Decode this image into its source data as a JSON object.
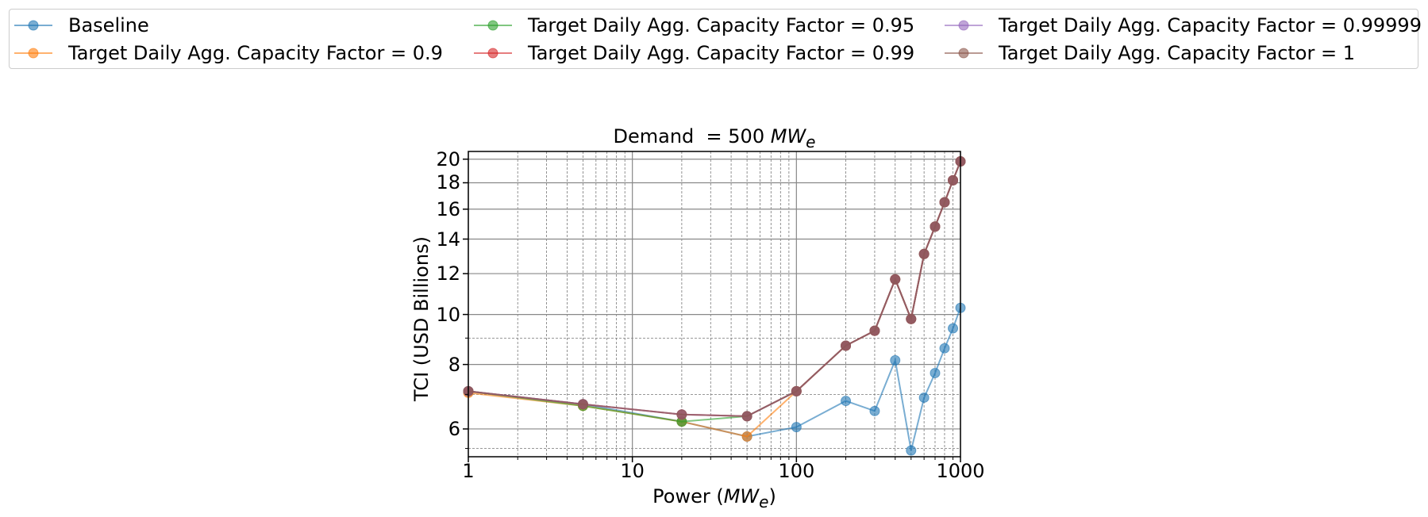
{
  "chart_data": {
    "type": "line",
    "title": "Demand  = 500 MW_e",
    "title_parts": {
      "prefix": "Demand  = 500 ",
      "math": "MW",
      "sub": "e"
    },
    "xlabel_parts": {
      "prefix": "Power (",
      "math": "MW",
      "sub": "e",
      "suffix": ")"
    },
    "ylabel": "TCI (USD Billions)",
    "xscale": "log",
    "yscale": "log",
    "xlim": [
      1,
      1000
    ],
    "ylim": [
      5.3,
      20.7
    ],
    "grid": true,
    "legend_placement": "top, outside, 3 columns",
    "xticks": [
      {
        "value": 1,
        "label": "1"
      },
      {
        "value": 10,
        "label": "10"
      },
      {
        "value": 100,
        "label": "100"
      },
      {
        "value": 1000,
        "label": "1000"
      }
    ],
    "yticks": [
      {
        "value": 6,
        "label": "6"
      },
      {
        "value": 8,
        "label": "8"
      },
      {
        "value": 10,
        "label": "10"
      },
      {
        "value": 12,
        "label": "12"
      },
      {
        "value": 14,
        "label": "14"
      },
      {
        "value": 16,
        "label": "16"
      },
      {
        "value": 18,
        "label": "18"
      },
      {
        "value": 20,
        "label": "20"
      }
    ],
    "series": [
      {
        "name": "Baseline",
        "color": "#1f77b4",
        "x": [
          1,
          5,
          20,
          50,
          100,
          200,
          300,
          400,
          500,
          600,
          700,
          800,
          900,
          1000
        ],
        "y": [
          7.1,
          6.7,
          6.2,
          5.8,
          6.05,
          6.8,
          6.5,
          8.15,
          5.45,
          6.9,
          7.7,
          8.6,
          9.4,
          10.3
        ]
      },
      {
        "name": "Target Daily Agg. Capacity Factor = 0.9",
        "color": "#ff7f0e",
        "x": [
          1,
          5,
          20,
          50,
          100,
          200,
          300,
          400,
          500,
          600,
          700,
          800,
          900,
          1000
        ],
        "y": [
          7.05,
          6.65,
          6.2,
          5.8,
          7.1,
          8.7,
          9.3,
          11.7,
          9.8,
          13.1,
          14.8,
          16.5,
          18.2,
          19.8
        ]
      },
      {
        "name": "Target Daily Agg. Capacity Factor = 0.95",
        "color": "#2ca02c",
        "x": [
          1,
          5,
          20,
          50,
          100,
          200,
          300,
          400,
          500,
          600,
          700,
          800,
          900,
          1000
        ],
        "y": [
          7.1,
          6.65,
          6.2,
          6.35,
          7.1,
          8.7,
          9.3,
          11.7,
          9.8,
          13.1,
          14.8,
          16.5,
          18.2,
          19.8
        ]
      },
      {
        "name": "Target Daily Agg. Capacity Factor = 0.99",
        "color": "#d62728",
        "x": [
          1,
          5,
          20,
          50,
          100,
          200,
          300,
          400,
          500,
          600,
          700,
          800,
          900,
          1000
        ],
        "y": [
          7.1,
          6.7,
          6.4,
          6.35,
          7.1,
          8.7,
          9.3,
          11.7,
          9.8,
          13.1,
          14.8,
          16.5,
          18.2,
          19.8
        ]
      },
      {
        "name": "Target Daily Agg. Capacity Factor = 0.99999",
        "color": "#9467bd",
        "x": [
          1,
          5,
          20,
          50,
          100,
          200,
          300,
          400,
          500,
          600,
          700,
          800,
          900,
          1000
        ],
        "y": [
          7.1,
          6.7,
          6.4,
          6.35,
          7.1,
          8.7,
          9.3,
          11.7,
          9.8,
          13.1,
          14.8,
          16.5,
          18.2,
          19.8
        ]
      },
      {
        "name": "Target Daily Agg. Capacity Factor = 1",
        "color": "#8c564b",
        "x": [
          1,
          5,
          20,
          50,
          100,
          200,
          300,
          400,
          500,
          600,
          700,
          800,
          900,
          1000
        ],
        "y": [
          7.1,
          6.7,
          6.4,
          6.35,
          7.1,
          8.7,
          9.3,
          11.7,
          9.8,
          13.1,
          14.8,
          16.5,
          18.2,
          19.8
        ]
      }
    ]
  }
}
